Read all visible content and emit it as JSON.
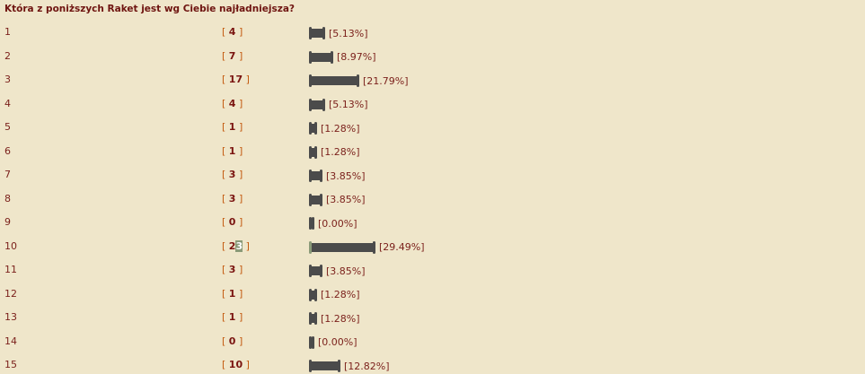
{
  "poll": {
    "question": "Która z poniższych Raket jest wg Ciebie najładniejsza?",
    "options": [
      {
        "label": "1",
        "votes": "4",
        "percent": "[5.13%]",
        "value": 5.13
      },
      {
        "label": "2",
        "votes": "7",
        "percent": "[8.97%]",
        "value": 8.97
      },
      {
        "label": "3",
        "votes": "17",
        "percent": "[21.79%]",
        "value": 21.79
      },
      {
        "label": "4",
        "votes": "4",
        "percent": "[5.13%]",
        "value": 5.13
      },
      {
        "label": "5",
        "votes": "1",
        "percent": "[1.28%]",
        "value": 1.28
      },
      {
        "label": "6",
        "votes": "1",
        "percent": "[1.28%]",
        "value": 1.28
      },
      {
        "label": "7",
        "votes": "3",
        "percent": "[3.85%]",
        "value": 3.85
      },
      {
        "label": "8",
        "votes": "3",
        "percent": "[3.85%]",
        "value": 3.85
      },
      {
        "label": "9",
        "votes": "0",
        "percent": "[0.00%]",
        "value": 0
      },
      {
        "label": "10",
        "votes": "23",
        "percent": "[29.49%]",
        "value": 29.49,
        "selected": true
      },
      {
        "label": "11",
        "votes": "3",
        "percent": "[3.85%]",
        "value": 3.85
      },
      {
        "label": "12",
        "votes": "1",
        "percent": "[1.28%]",
        "value": 1.28
      },
      {
        "label": "13",
        "votes": "1",
        "percent": "[1.28%]",
        "value": 1.28
      },
      {
        "label": "14",
        "votes": "0",
        "percent": "[0.00%]",
        "value": 0
      },
      {
        "label": "15",
        "votes": "10",
        "percent": "[12.82%]",
        "value": 12.82
      }
    ]
  },
  "colors": {
    "background": "#efe6ca",
    "text": "#7a1f1a",
    "bracket": "#c35a10",
    "bar": "#4b4b4b"
  }
}
